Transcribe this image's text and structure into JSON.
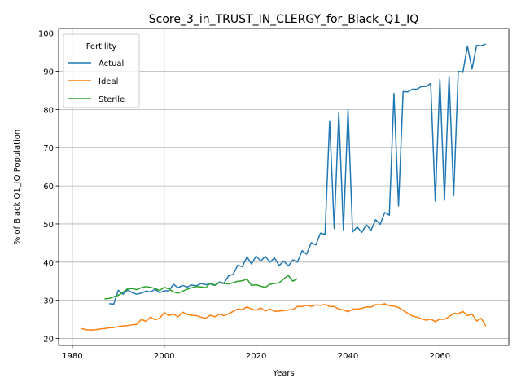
{
  "chart_data": {
    "type": "line",
    "title": "Score_3_in_TRUST_IN_CLERGY_for_Black_Q1_IQ",
    "xlabel": "Years",
    "ylabel": "% of Black Q1_IQ Population",
    "xlim": [
      1977,
      2075
    ],
    "ylim": [
      18.2,
      101.2
    ],
    "xticks": [
      1980,
      2000,
      2020,
      2040,
      2060
    ],
    "yticks": [
      20,
      30,
      40,
      50,
      60,
      70,
      80,
      90,
      100
    ],
    "grid": true,
    "legend": {
      "title": "Fertility",
      "position": "top-left",
      "entries": [
        "Actual",
        "Ideal",
        "Sterile"
      ]
    },
    "colors": {
      "Actual": "#1f77b4",
      "Ideal": "#ff7f0e",
      "Sterile": "#2ca02c"
    },
    "series": [
      {
        "name": "Actual",
        "x": [
          1988,
          1989,
          1990,
          1991,
          1992,
          1993,
          1994,
          1995,
          1996,
          1997,
          1998,
          1999,
          2000,
          2001,
          2002,
          2003,
          2004,
          2005,
          2006,
          2007,
          2008,
          2009,
          2010,
          2011,
          2012,
          2013,
          2014,
          2015,
          2016,
          2017,
          2018,
          2019,
          2020,
          2021,
          2022,
          2023,
          2024,
          2025,
          2026,
          2027,
          2028,
          2029,
          2030,
          2031,
          2032,
          2033,
          2034,
          2035,
          2036,
          2037,
          2038,
          2039,
          2040,
          2041,
          2042,
          2043,
          2044,
          2045,
          2046,
          2047,
          2048,
          2049,
          2050,
          2051,
          2052,
          2053,
          2054,
          2055,
          2056,
          2057,
          2058,
          2059,
          2060,
          2061,
          2062,
          2063,
          2064,
          2065,
          2066,
          2067,
          2068,
          2069,
          2070
        ],
        "values": [
          29.1,
          29.0,
          32.6,
          31.6,
          32.7,
          32.0,
          31.6,
          31.9,
          32.4,
          32.2,
          32.9,
          32.0,
          32.5,
          32.5,
          34.2,
          33.3,
          33.9,
          33.5,
          34.0,
          33.8,
          34.4,
          34.1,
          34.3,
          33.9,
          34.8,
          34.5,
          36.4,
          36.8,
          39.2,
          38.8,
          41.4,
          39.5,
          41.6,
          40.3,
          41.5,
          40.0,
          41.1,
          39.1,
          40.3,
          39.0,
          40.6,
          40.0,
          43.0,
          42.1,
          45.1,
          44.5,
          47.6,
          47.3,
          77.0,
          48.8,
          79.2,
          48.4,
          79.9,
          47.9,
          49.2,
          47.8,
          49.8,
          48.3,
          51.1,
          49.9,
          53.0,
          52.3,
          84.2,
          54.7,
          84.7,
          84.6,
          85.3,
          85.3,
          86.0,
          86.0,
          86.8,
          56.0,
          87.9,
          56.2,
          88.7,
          57.4,
          90.0,
          89.7,
          96.6,
          90.6,
          96.8,
          96.7,
          97.1
        ]
      },
      {
        "name": "Ideal",
        "x": [
          1982,
          1983,
          1984,
          1985,
          1986,
          1987,
          1988,
          1989,
          1990,
          1991,
          1992,
          1993,
          1994,
          1995,
          1996,
          1997,
          1998,
          1999,
          2000,
          2001,
          2002,
          2003,
          2004,
          2005,
          2006,
          2007,
          2008,
          2009,
          2010,
          2011,
          2012,
          2013,
          2014,
          2015,
          2016,
          2017,
          2018,
          2019,
          2020,
          2021,
          2022,
          2023,
          2024,
          2025,
          2026,
          2027,
          2028,
          2029,
          2030,
          2031,
          2032,
          2033,
          2034,
          2035,
          2036,
          2037,
          2038,
          2039,
          2040,
          2041,
          2042,
          2043,
          2044,
          2045,
          2046,
          2047,
          2048,
          2049,
          2050,
          2051,
          2052,
          2053,
          2054,
          2055,
          2056,
          2057,
          2058,
          2059,
          2060,
          2061,
          2062,
          2063,
          2064,
          2065,
          2066,
          2067,
          2068,
          2069,
          2070
        ],
        "values": [
          22.6,
          22.3,
          22.2,
          22.3,
          22.5,
          22.6,
          22.8,
          22.9,
          23.1,
          23.3,
          23.4,
          23.6,
          23.7,
          25.0,
          24.5,
          25.6,
          24.9,
          25.3,
          26.8,
          26.0,
          26.4,
          25.7,
          26.9,
          26.3,
          26.1,
          26.0,
          25.6,
          25.3,
          26.1,
          25.7,
          26.4,
          26.0,
          26.5,
          27.1,
          27.7,
          27.6,
          28.3,
          27.7,
          27.4,
          28.0,
          27.2,
          27.7,
          27.1,
          27.2,
          27.3,
          27.5,
          27.6,
          28.4,
          28.4,
          28.7,
          28.4,
          28.8,
          28.7,
          28.9,
          28.4,
          28.4,
          27.7,
          27.5,
          27.0,
          27.7,
          27.7,
          27.9,
          28.3,
          28.2,
          28.9,
          28.8,
          29.1,
          28.6,
          28.5,
          28.1,
          27.4,
          26.6,
          25.9,
          25.6,
          25.2,
          24.8,
          25.1,
          24.4,
          25.1,
          25.0,
          25.7,
          26.6,
          26.5,
          27.1,
          26.0,
          26.4,
          24.6,
          25.3,
          23.2
        ]
      },
      {
        "name": "Sterile",
        "x": [
          1987,
          1988,
          1989,
          1990,
          1991,
          1992,
          1993,
          1994,
          1995,
          1996,
          1997,
          1998,
          1999,
          2000,
          2001,
          2002,
          2003,
          2004,
          2005,
          2006,
          2007,
          2008,
          2009,
          2010,
          2011,
          2012,
          2013,
          2014,
          2015,
          2016,
          2017,
          2018,
          2019,
          2020,
          2021,
          2022,
          2023,
          2024,
          2025,
          2026,
          2027,
          2028,
          2029
        ],
        "values": [
          30.4,
          30.5,
          30.9,
          31.3,
          32.1,
          33.0,
          33.1,
          32.8,
          33.3,
          33.6,
          33.4,
          33.1,
          32.6,
          33.4,
          33.0,
          32.2,
          31.9,
          32.4,
          32.9,
          33.3,
          33.6,
          33.5,
          33.3,
          34.5,
          34.0,
          34.6,
          34.4,
          34.3,
          34.6,
          35.0,
          35.1,
          35.6,
          33.9,
          34.1,
          33.7,
          33.4,
          34.2,
          34.4,
          34.6,
          35.6,
          36.5,
          35.0,
          35.7
        ]
      }
    ]
  }
}
